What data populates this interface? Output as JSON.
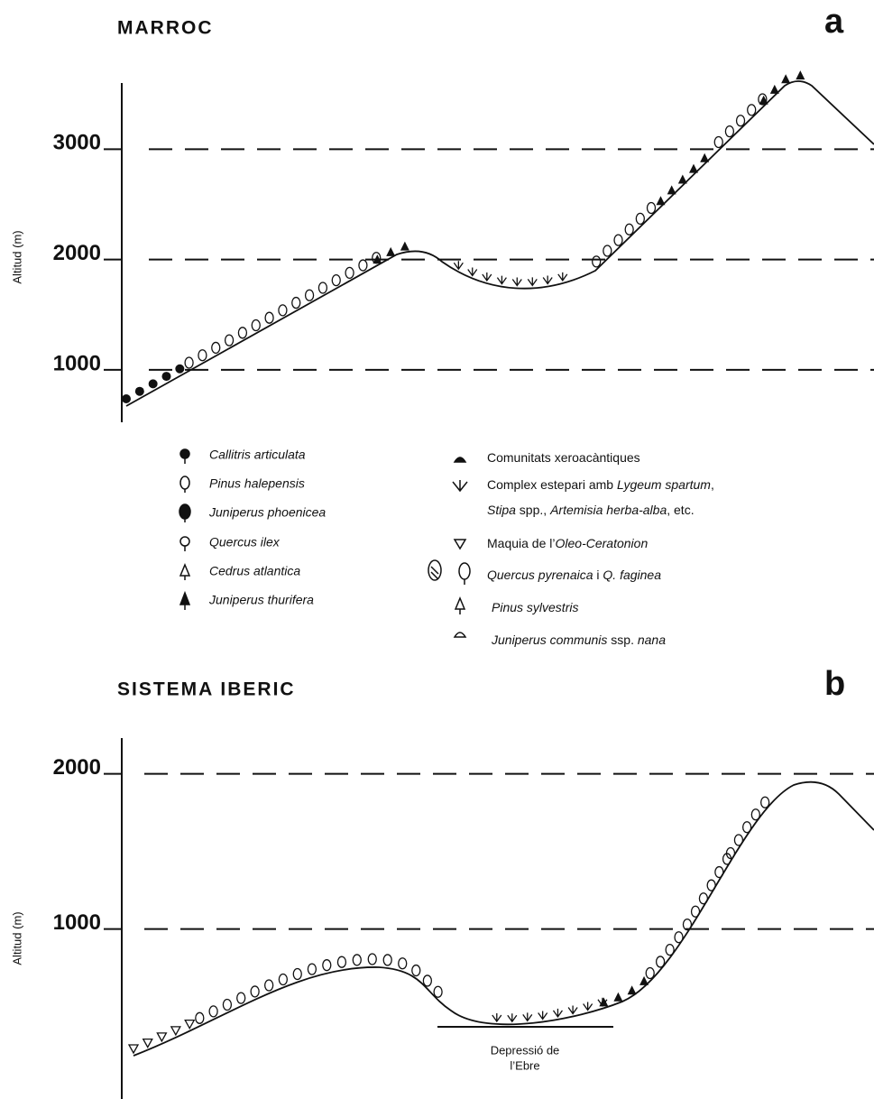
{
  "panels": [
    {
      "title": "MARROC",
      "letter": "a",
      "y_label": "Altitud (m)",
      "yticks": [
        1000,
        2000,
        3000
      ],
      "ylim": [
        525,
        3600
      ]
    },
    {
      "title": "SISTEMA IBERIC",
      "letter": "b",
      "y_label": "Altitud (m)",
      "yticks": [
        1000,
        2000
      ],
      "ylim": [
        -95,
        2230
      ],
      "annotation": [
        "Depressió de",
        "l’Ebre"
      ]
    }
  ],
  "legend": {
    "left": [
      "Callitris articulata",
      "Pinus halepensis",
      "Juniperus phoenicea",
      "Quercus ilex",
      "Cedrus atlantica",
      "Juniperus thurifera"
    ],
    "right": [
      [
        "Comunitats xeroacàntiques"
      ],
      [
        "Complex estepari amb ",
        "Lygeum spartum",
        ","
      ],
      [
        "Stipa",
        " spp., ",
        "Artemisia herba-alba",
        ", etc."
      ],
      [
        "Maquia de l’",
        "Oleo-Ceratonion"
      ],
      [
        "Quercus pyrenaica",
        " i ",
        "Q. faginea"
      ],
      [
        "Pinus sylvestris"
      ],
      [
        "Juniperus communis",
        " ssp. ",
        "nana"
      ]
    ]
  }
}
